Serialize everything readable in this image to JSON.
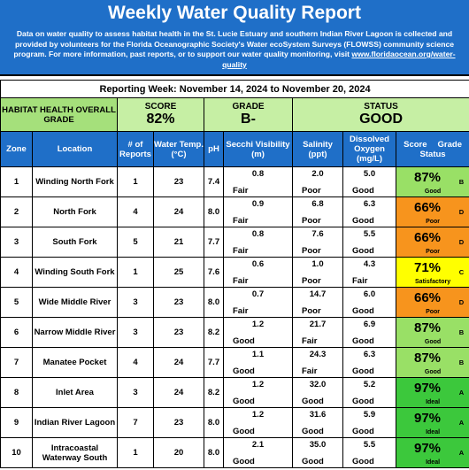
{
  "header": {
    "title": "Weekly Water Quality Report",
    "description": "Data on water quality to assess habitat health in the St. Lucie Estuary and southern Indian River Lagoon is collected and provided by volunteers for the Florida Oceanographic Society's Water ecoSystem Surveys (FLOWSS) community science program.  For more information, past reports, or to support our water quality monitoring, visit",
    "link": "www.floridaocean.org/water-quality"
  },
  "reporting_week": "Reporting Week: November 14, 2024 to November 20, 2024",
  "summary": {
    "label": "HABITAT HEALTH OVERALL GRADE",
    "score_label": "SCORE",
    "score": "82%",
    "grade_label": "GRADE",
    "grade": "B-",
    "status_label": "STATUS",
    "status": "GOOD"
  },
  "table": {
    "columns": [
      "Zone",
      "Location",
      "# of Reports",
      "Water Temp. (°C)",
      "pH",
      "Secchi Visibility (m)",
      "Salinity (ppt)",
      "Dissolved Oxygen (mg/L)"
    ],
    "score_columns": [
      "Score",
      "Grade",
      "Status"
    ],
    "rows": [
      {
        "zone": "1",
        "location": "Winding North Fork",
        "reports": "1",
        "temp": "23",
        "ph": "7.4",
        "secchi": "0.8",
        "secchi_rating": "Fair",
        "salinity": "2.0",
        "salinity_rating": "Poor",
        "oxygen": "5.0",
        "oxygen_rating": "Good",
        "score": "87%",
        "grade": "B",
        "status": "Good",
        "color": "#99e066"
      },
      {
        "zone": "2",
        "location": "North Fork",
        "reports": "4",
        "temp": "24",
        "ph": "8.0",
        "secchi": "0.9",
        "secchi_rating": "Fair",
        "salinity": "6.8",
        "salinity_rating": "Poor",
        "oxygen": "6.3",
        "oxygen_rating": "Good",
        "score": "66%",
        "grade": "D",
        "status": "Poor",
        "color": "#f7941d"
      },
      {
        "zone": "3",
        "location": "South Fork",
        "reports": "5",
        "temp": "21",
        "ph": "7.7",
        "secchi": "0.8",
        "secchi_rating": "Fair",
        "salinity": "7.6",
        "salinity_rating": "Poor",
        "oxygen": "5.5",
        "oxygen_rating": "Good",
        "score": "66%",
        "grade": "D",
        "status": "Poor",
        "color": "#f7941d"
      },
      {
        "zone": "4",
        "location": "Winding South Fork",
        "reports": "1",
        "temp": "25",
        "ph": "7.6",
        "secchi": "0.6",
        "secchi_rating": "Fair",
        "salinity": "1.0",
        "salinity_rating": "Poor",
        "oxygen": "4.3",
        "oxygen_rating": "Fair",
        "score": "71%",
        "grade": "C",
        "status": "Satisfactory",
        "color": "#ffff00"
      },
      {
        "zone": "5",
        "location": "Wide Middle River",
        "reports": "3",
        "temp": "23",
        "ph": "8.0",
        "secchi": "0.7",
        "secchi_rating": "Fair",
        "salinity": "14.7",
        "salinity_rating": "Poor",
        "oxygen": "6.0",
        "oxygen_rating": "Good",
        "score": "66%",
        "grade": "D",
        "status": "Poor",
        "color": "#f7941d"
      },
      {
        "zone": "6",
        "location": "Narrow Middle River",
        "reports": "3",
        "temp": "23",
        "ph": "8.2",
        "secchi": "1.2",
        "secchi_rating": "Good",
        "salinity": "21.7",
        "salinity_rating": "Fair",
        "oxygen": "6.9",
        "oxygen_rating": "Good",
        "score": "87%",
        "grade": "B",
        "status": "Good",
        "color": "#99e066"
      },
      {
        "zone": "7",
        "location": "Manatee Pocket",
        "reports": "4",
        "temp": "24",
        "ph": "7.7",
        "secchi": "1.1",
        "secchi_rating": "Good",
        "salinity": "24.3",
        "salinity_rating": "Fair",
        "oxygen": "6.3",
        "oxygen_rating": "Good",
        "score": "87%",
        "grade": "B",
        "status": "Good",
        "color": "#99e066"
      },
      {
        "zone": "8",
        "location": "Inlet Area",
        "reports": "3",
        "temp": "24",
        "ph": "8.2",
        "secchi": "1.2",
        "secchi_rating": "Good",
        "salinity": "32.0",
        "salinity_rating": "Good",
        "oxygen": "5.2",
        "oxygen_rating": "Good",
        "score": "97%",
        "grade": "A",
        "status": "Ideal",
        "color": "#3cc83c"
      },
      {
        "zone": "9",
        "location": "Indian River Lagoon",
        "reports": "7",
        "temp": "23",
        "ph": "8.0",
        "secchi": "1.2",
        "secchi_rating": "Good",
        "salinity": "31.6",
        "salinity_rating": "Good",
        "oxygen": "5.9",
        "oxygen_rating": "Good",
        "score": "97%",
        "grade": "A",
        "status": "Ideal",
        "color": "#3cc83c"
      },
      {
        "zone": "10",
        "location": "Intracoastal Waterway South",
        "reports": "1",
        "temp": "20",
        "ph": "8.0",
        "secchi": "2.1",
        "secchi_rating": "Good",
        "salinity": "35.0",
        "salinity_rating": "Good",
        "oxygen": "5.5",
        "oxygen_rating": "Good",
        "score": "97%",
        "grade": "A",
        "status": "Ideal",
        "color": "#3cc83c"
      }
    ]
  }
}
